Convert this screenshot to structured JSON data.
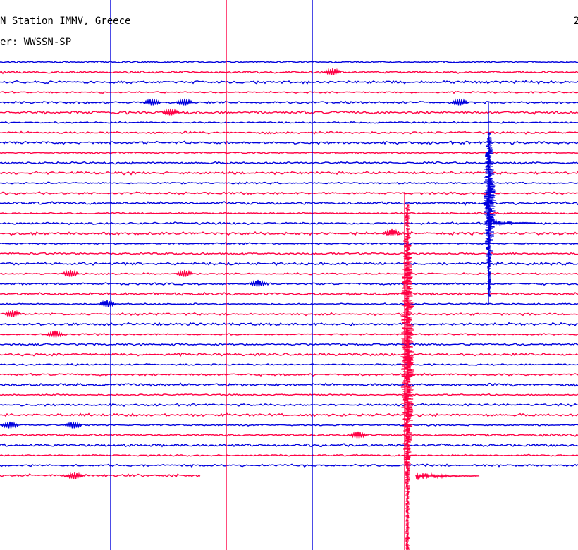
{
  "header": {
    "title": "N Station IMMV, Greece",
    "filter": "er: WWSSN-SP",
    "corner": "2"
  },
  "chart_data": {
    "type": "line",
    "title": "N Station IMMV, Greece",
    "subtitle": "er: WWSSN-SP",
    "xlabel": "",
    "ylabel": "",
    "grid": false,
    "colors": [
      "#0000dd",
      "#ff0044"
    ],
    "trace_count": 42,
    "events": [
      {
        "name": "blue-burst",
        "color": "#0000dd"
      },
      {
        "name": "red-burst",
        "color": "#ff0044"
      }
    ]
  }
}
